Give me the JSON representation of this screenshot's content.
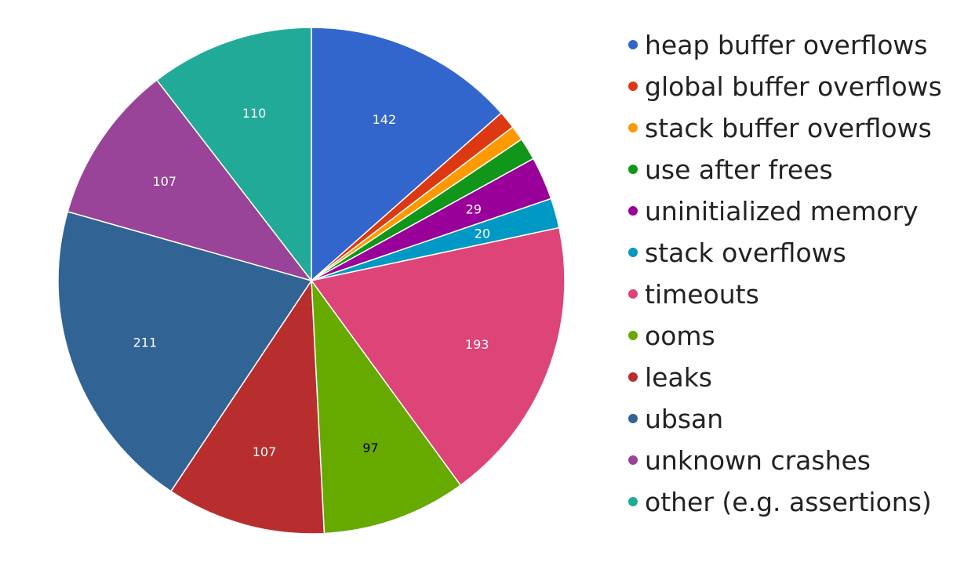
{
  "chart_data": {
    "type": "pie",
    "title": "",
    "start_angle_deg": 0,
    "direction": "clockwise",
    "legend_position": "right",
    "slices": [
      {
        "label": "heap buffer overflows",
        "value": 142,
        "color": "#3366CC",
        "show_value": true,
        "value_color": "#ffffff"
      },
      {
        "label": "global buffer overflows",
        "value": 12,
        "color": "#DC3912",
        "show_value": false,
        "value_color": "#ffffff"
      },
      {
        "label": "stack buffer overflows",
        "value": 10,
        "color": "#FF9900",
        "show_value": false,
        "value_color": "#ffffff"
      },
      {
        "label": "use after frees",
        "value": 15,
        "color": "#109618",
        "show_value": false,
        "value_color": "#ffffff"
      },
      {
        "label": "uninitialized memory",
        "value": 29,
        "color": "#990099",
        "show_value": true,
        "value_color": "#ffffff"
      },
      {
        "label": "stack overflows",
        "value": 20,
        "color": "#0099C6",
        "show_value": true,
        "value_color": "#ffffff"
      },
      {
        "label": "timeouts",
        "value": 193,
        "color": "#DD4477",
        "show_value": true,
        "value_color": "#ffffff"
      },
      {
        "label": "ooms",
        "value": 97,
        "color": "#66AA00",
        "show_value": true,
        "value_color": "#000000"
      },
      {
        "label": "leaks",
        "value": 107,
        "color": "#B82E2E",
        "show_value": true,
        "value_color": "#ffffff"
      },
      {
        "label": "ubsan",
        "value": 211,
        "color": "#316395",
        "show_value": true,
        "value_color": "#ffffff"
      },
      {
        "label": "unknown crashes",
        "value": 107,
        "color": "#994499",
        "show_value": true,
        "value_color": "#ffffff"
      },
      {
        "label": "other (e.g. assertions)",
        "value": 110,
        "color": "#22AA99",
        "show_value": true,
        "value_color": "#ffffff"
      }
    ]
  }
}
